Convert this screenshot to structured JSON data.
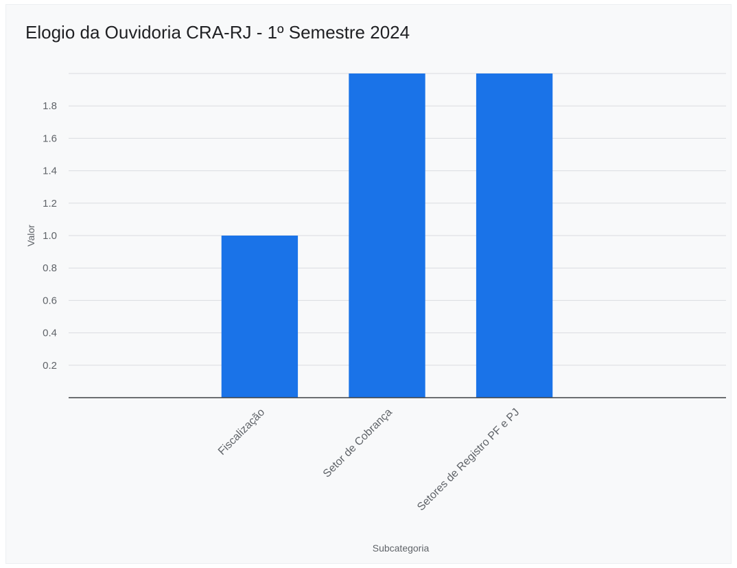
{
  "chart_data": {
    "type": "bar",
    "title": "Elogio da Ouvidoria CRA-RJ - 1º Semestre 2024",
    "xlabel": "Subcategoria",
    "ylabel": "Valor",
    "categories": [
      "",
      "Fiscalização",
      "Setor de Cobrança",
      "Setores de Registro PF e PJ",
      ""
    ],
    "values": [
      0,
      1,
      2,
      2,
      0
    ],
    "ylim": [
      0,
      2
    ],
    "yticks": [
      "0.2",
      "0.4",
      "0.6",
      "0.8",
      "1.0",
      "1.2",
      "1.4",
      "1.6",
      "1.8"
    ],
    "grid": true,
    "legend": "none",
    "colors": {
      "bar": "#1a73e8",
      "grid": "#dadce0",
      "axis": "#3c4043"
    }
  }
}
